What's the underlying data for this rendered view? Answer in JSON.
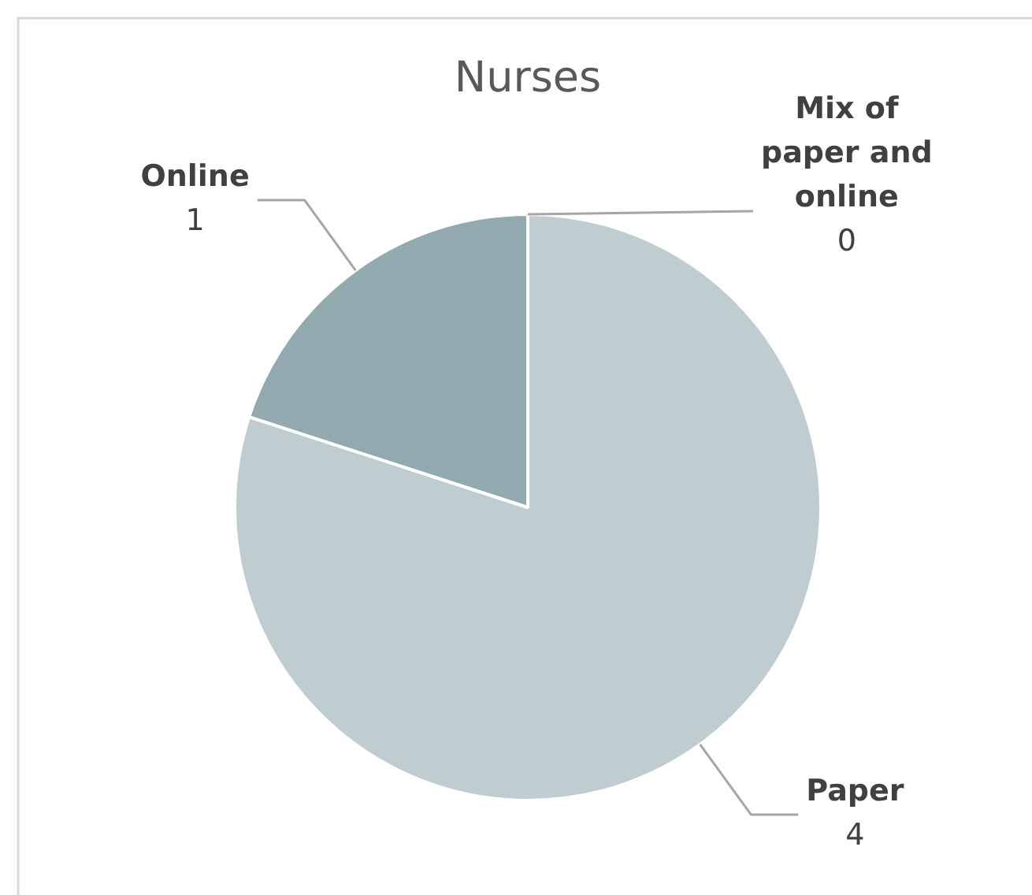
{
  "chart_data": {
    "type": "pie",
    "title": "Nurses",
    "categories": [
      "Paper",
      "Online",
      "Mix of paper and online"
    ],
    "values": [
      4,
      1,
      0
    ],
    "colors": [
      "#bfcdd1",
      "#91a9af",
      "#6f8c93"
    ],
    "value_labels": [
      "4",
      "1",
      "0"
    ]
  }
}
